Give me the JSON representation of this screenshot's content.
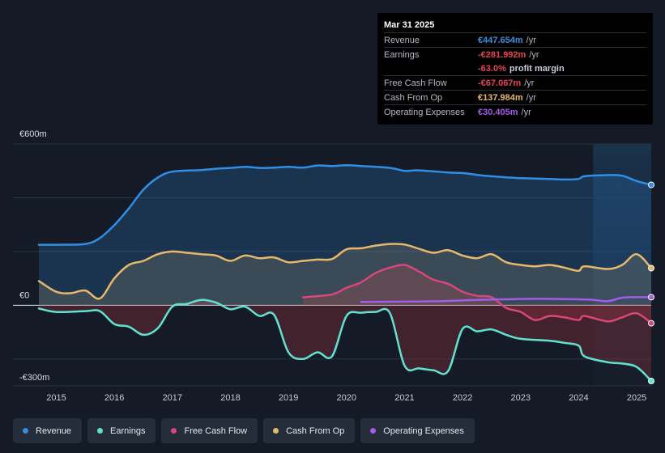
{
  "tooltip": {
    "date": "Mar 31 2025",
    "rows": [
      {
        "label": "Revenue",
        "value": "€447.654m",
        "unit": "/yr",
        "color": "#3b8fe0"
      },
      {
        "label": "Earnings",
        "value": "-€281.992m",
        "unit": "/yr",
        "color": "#e8434f"
      },
      {
        "label": "",
        "value": "-63.0%",
        "unit": "profit margin",
        "color": "#e8434f"
      },
      {
        "label": "Free Cash Flow",
        "value": "-€67.067m",
        "unit": "/yr",
        "color": "#e8434f"
      },
      {
        "label": "Cash From Op",
        "value": "€137.984m",
        "unit": "/yr",
        "color": "#e8b86a"
      },
      {
        "label": "Operating Expenses",
        "value": "€30.405m",
        "unit": "/yr",
        "color": "#a35be8"
      }
    ]
  },
  "legend": [
    {
      "label": "Revenue",
      "color": "#2f8ee6"
    },
    {
      "label": "Earnings",
      "color": "#5fe3d0"
    },
    {
      "label": "Free Cash Flow",
      "color": "#d9467c"
    },
    {
      "label": "Cash From Op",
      "color": "#e8b86a"
    },
    {
      "label": "Operating Expenses",
      "color": "#a35be8"
    }
  ],
  "chart_data": {
    "type": "area",
    "title": "",
    "ylabels": [
      "€600m",
      "€0",
      "-€300m"
    ],
    "yticks": [
      600,
      0,
      -300
    ],
    "ylim": [
      -300,
      600
    ],
    "xlim": [
      2014.7,
      2025.25
    ],
    "xticks": [
      "2015",
      "2016",
      "2017",
      "2018",
      "2019",
      "2020",
      "2021",
      "2022",
      "2023",
      "2024",
      "2025"
    ],
    "xtick_values": [
      2015,
      2016,
      2017,
      2018,
      2019,
      2020,
      2021,
      2022,
      2023,
      2024,
      2025
    ],
    "highlight_from": 2024.25,
    "series": [
      {
        "name": "Revenue",
        "color": "#2f8ee6",
        "fill": true,
        "points": [
          [
            2014.7,
            225
          ],
          [
            2015.0,
            225
          ],
          [
            2015.5,
            228
          ],
          [
            2015.75,
            250
          ],
          [
            2016.0,
            298
          ],
          [
            2016.25,
            360
          ],
          [
            2016.5,
            430
          ],
          [
            2016.75,
            475
          ],
          [
            2017.0,
            497
          ],
          [
            2017.5,
            503
          ],
          [
            2017.75,
            508
          ],
          [
            2018.0,
            511
          ],
          [
            2018.25,
            515
          ],
          [
            2018.5,
            511
          ],
          [
            2018.75,
            512
          ],
          [
            2019.0,
            515
          ],
          [
            2019.25,
            512
          ],
          [
            2019.5,
            520
          ],
          [
            2019.75,
            518
          ],
          [
            2020.0,
            521
          ],
          [
            2020.25,
            518
          ],
          [
            2020.75,
            511
          ],
          [
            2021.0,
            500
          ],
          [
            2021.25,
            502
          ],
          [
            2021.75,
            494
          ],
          [
            2022.0,
            492
          ],
          [
            2022.25,
            485
          ],
          [
            2022.5,
            480
          ],
          [
            2022.75,
            476
          ],
          [
            2023.0,
            473
          ],
          [
            2023.5,
            470
          ],
          [
            2023.75,
            468
          ],
          [
            2024.0,
            470
          ],
          [
            2024.1,
            480
          ],
          [
            2024.5,
            484
          ],
          [
            2024.75,
            482
          ],
          [
            2025.0,
            462
          ],
          [
            2025.25,
            448
          ]
        ]
      },
      {
        "name": "Earnings",
        "color": "#5fe3d0",
        "fill": true,
        "points": [
          [
            2014.7,
            -12
          ],
          [
            2015.0,
            -25
          ],
          [
            2015.5,
            -22
          ],
          [
            2015.75,
            -22
          ],
          [
            2016.0,
            -70
          ],
          [
            2016.25,
            -80
          ],
          [
            2016.5,
            -110
          ],
          [
            2016.75,
            -85
          ],
          [
            2017.0,
            -5
          ],
          [
            2017.25,
            5
          ],
          [
            2017.5,
            20
          ],
          [
            2017.75,
            10
          ],
          [
            2018.0,
            -15
          ],
          [
            2018.25,
            -5
          ],
          [
            2018.5,
            -40
          ],
          [
            2018.75,
            -35
          ],
          [
            2019.0,
            -175
          ],
          [
            2019.25,
            -200
          ],
          [
            2019.5,
            -175
          ],
          [
            2019.75,
            -190
          ],
          [
            2020.0,
            -40
          ],
          [
            2020.25,
            -28
          ],
          [
            2020.5,
            -25
          ],
          [
            2020.75,
            -30
          ],
          [
            2021.0,
            -225
          ],
          [
            2021.25,
            -235
          ],
          [
            2021.5,
            -242
          ],
          [
            2021.75,
            -245
          ],
          [
            2022.0,
            -88
          ],
          [
            2022.25,
            -97
          ],
          [
            2022.5,
            -90
          ],
          [
            2022.75,
            -110
          ],
          [
            2023.0,
            -125
          ],
          [
            2023.5,
            -132
          ],
          [
            2023.75,
            -140
          ],
          [
            2024.0,
            -150
          ],
          [
            2024.1,
            -190
          ],
          [
            2024.5,
            -212
          ],
          [
            2024.75,
            -217
          ],
          [
            2025.0,
            -230
          ],
          [
            2025.25,
            -282
          ]
        ]
      },
      {
        "name": "Free Cash Flow",
        "color": "#d9467c",
        "fill": true,
        "points": [
          [
            2019.25,
            30
          ],
          [
            2019.75,
            40
          ],
          [
            2020.0,
            65
          ],
          [
            2020.25,
            85
          ],
          [
            2020.5,
            120
          ],
          [
            2020.75,
            140
          ],
          [
            2021.0,
            150
          ],
          [
            2021.25,
            125
          ],
          [
            2021.5,
            95
          ],
          [
            2021.75,
            80
          ],
          [
            2022.0,
            50
          ],
          [
            2022.25,
            35
          ],
          [
            2022.5,
            30
          ],
          [
            2022.75,
            -10
          ],
          [
            2023.0,
            -25
          ],
          [
            2023.25,
            -55
          ],
          [
            2023.5,
            -40
          ],
          [
            2023.75,
            -45
          ],
          [
            2024.0,
            -55
          ],
          [
            2024.1,
            -40
          ],
          [
            2024.5,
            -60
          ],
          [
            2024.75,
            -45
          ],
          [
            2025.0,
            -30
          ],
          [
            2025.25,
            -67
          ]
        ]
      },
      {
        "name": "Cash From Op",
        "color": "#e8b86a",
        "fill": true,
        "points": [
          [
            2014.7,
            90
          ],
          [
            2015.0,
            50
          ],
          [
            2015.25,
            45
          ],
          [
            2015.5,
            55
          ],
          [
            2015.75,
            25
          ],
          [
            2016.0,
            100
          ],
          [
            2016.25,
            150
          ],
          [
            2016.5,
            165
          ],
          [
            2016.75,
            190
          ],
          [
            2017.0,
            200
          ],
          [
            2017.25,
            195
          ],
          [
            2017.5,
            190
          ],
          [
            2017.75,
            185
          ],
          [
            2018.0,
            165
          ],
          [
            2018.25,
            185
          ],
          [
            2018.5,
            175
          ],
          [
            2018.75,
            178
          ],
          [
            2019.0,
            160
          ],
          [
            2019.25,
            165
          ],
          [
            2019.5,
            170
          ],
          [
            2019.75,
            172
          ],
          [
            2020.0,
            208
          ],
          [
            2020.25,
            212
          ],
          [
            2020.5,
            222
          ],
          [
            2020.75,
            228
          ],
          [
            2021.0,
            226
          ],
          [
            2021.25,
            210
          ],
          [
            2021.5,
            195
          ],
          [
            2021.75,
            205
          ],
          [
            2022.0,
            185
          ],
          [
            2022.25,
            175
          ],
          [
            2022.5,
            190
          ],
          [
            2022.75,
            160
          ],
          [
            2023.0,
            150
          ],
          [
            2023.25,
            145
          ],
          [
            2023.5,
            150
          ],
          [
            2023.75,
            140
          ],
          [
            2024.0,
            128
          ],
          [
            2024.1,
            145
          ],
          [
            2024.5,
            135
          ],
          [
            2024.75,
            150
          ],
          [
            2025.0,
            190
          ],
          [
            2025.25,
            138
          ]
        ]
      },
      {
        "name": "Operating Expenses",
        "color": "#a35be8",
        "fill": false,
        "points": [
          [
            2020.25,
            12
          ],
          [
            2020.75,
            13
          ],
          [
            2021.25,
            14
          ],
          [
            2021.75,
            16
          ],
          [
            2022.25,
            20
          ],
          [
            2022.75,
            22
          ],
          [
            2023.25,
            24
          ],
          [
            2023.75,
            23
          ],
          [
            2024.0,
            22
          ],
          [
            2024.25,
            20
          ],
          [
            2024.5,
            15
          ],
          [
            2024.75,
            28
          ],
          [
            2025.0,
            30
          ],
          [
            2025.25,
            30
          ]
        ]
      }
    ]
  }
}
